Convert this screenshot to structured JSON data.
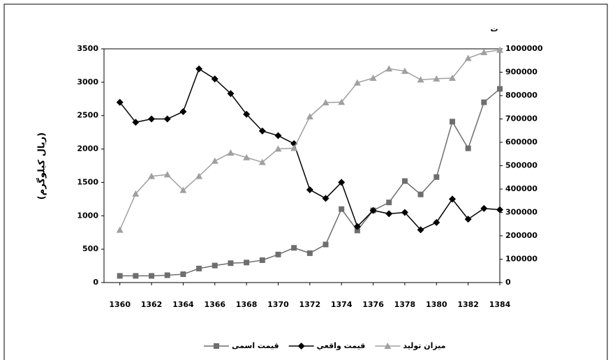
{
  "chart_data": {
    "type": "line",
    "y_label": "(ریال کیلوگرم)",
    "y2_label": "ت",
    "x": [
      1360,
      1361,
      1362,
      1363,
      1364,
      1365,
      1366,
      1367,
      1368,
      1369,
      1370,
      1371,
      1372,
      1373,
      1374,
      1375,
      1376,
      1377,
      1378,
      1379,
      1380,
      1381,
      1382,
      1383,
      1384
    ],
    "xlim": [
      1359,
      1384
    ],
    "xticks": [
      1360,
      1362,
      1364,
      1366,
      1368,
      1370,
      1372,
      1374,
      1376,
      1378,
      1380,
      1382,
      1384
    ],
    "ylim": [
      0,
      3500
    ],
    "yticks": [
      0,
      500,
      1000,
      1500,
      2000,
      2500,
      3000,
      3500
    ],
    "y2lim": [
      0,
      1000000
    ],
    "y2ticks": [
      0,
      100000,
      200000,
      300000,
      400000,
      500000,
      600000,
      700000,
      800000,
      900000,
      1000000
    ],
    "grid": false,
    "legend": "bottom",
    "series": [
      {
        "name": "قیمت اسمی",
        "color": "#6e6e6e",
        "marker": "square",
        "values": [
          100,
          100,
          100,
          110,
          125,
          210,
          255,
          290,
          300,
          335,
          420,
          520,
          440,
          570,
          1100,
          780,
          1080,
          1200,
          1520,
          1320,
          1580,
          2410,
          2010,
          2700,
          2900
        ]
      },
      {
        "name": "قيمت واقعي",
        "color": "#000000",
        "marker": "diamond",
        "values": [
          2700,
          2400,
          2450,
          2450,
          2560,
          3200,
          3050,
          2830,
          2520,
          2270,
          2200,
          2080,
          1390,
          1260,
          1500,
          840,
          1080,
          1030,
          1050,
          790,
          900,
          1250,
          950,
          1110,
          1090
        ]
      },
      {
        "name": "ميزان توليد",
        "color": "#a0a0a0",
        "marker": "triangle",
        "axis": "y2",
        "values": [
          225000,
          380000,
          455000,
          462000,
          395000,
          455000,
          520000,
          555000,
          535000,
          515000,
          572000,
          575000,
          710000,
          770000,
          772000,
          855000,
          875000,
          915000,
          905000,
          868000,
          872000,
          875000,
          960000,
          985000,
          995000
        ]
      }
    ]
  }
}
